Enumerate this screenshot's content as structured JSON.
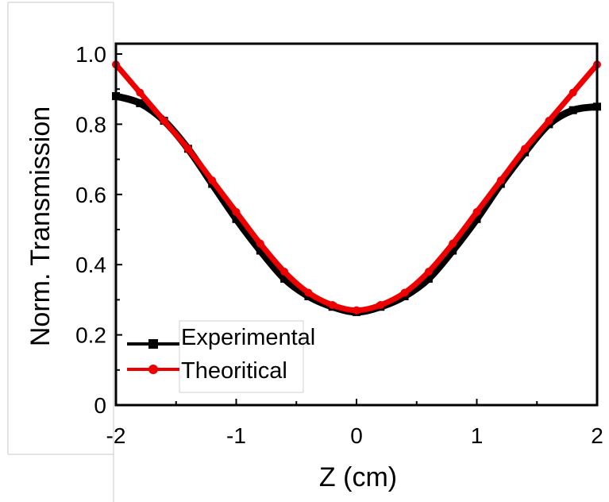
{
  "chart_data": {
    "type": "line",
    "title": "",
    "xlabel": "Z (cm)",
    "ylabel": "Norm. Transmission",
    "xlim": [
      -2,
      2
    ],
    "ylim": [
      0,
      1.0
    ],
    "x_ticks": [
      "-2",
      "-1",
      "0",
      "1",
      "2"
    ],
    "y_ticks": [
      "0",
      "0.2",
      "0.4",
      "0.6",
      "0.8",
      "1.0"
    ],
    "grid": false,
    "legend_position": "bottom-left",
    "series": [
      {
        "name": "Experimental",
        "color": "#000000",
        "marker": "square",
        "x": [
          -2.0,
          -1.8,
          -1.6,
          -1.4,
          -1.2,
          -1.0,
          -0.8,
          -0.6,
          -0.4,
          -0.2,
          0.0,
          0.2,
          0.4,
          0.6,
          0.8,
          1.0,
          1.2,
          1.4,
          1.6,
          1.8,
          2.0
        ],
        "y": [
          0.88,
          0.86,
          0.81,
          0.73,
          0.63,
          0.53,
          0.44,
          0.36,
          0.31,
          0.28,
          0.265,
          0.28,
          0.31,
          0.36,
          0.44,
          0.53,
          0.63,
          0.72,
          0.8,
          0.84,
          0.85
        ]
      },
      {
        "name": "Theoritical",
        "color": "#ee0000",
        "marker": "circle",
        "x": [
          -2.0,
          -1.8,
          -1.6,
          -1.4,
          -1.2,
          -1.0,
          -0.8,
          -0.6,
          -0.4,
          -0.2,
          0.0,
          0.2,
          0.4,
          0.6,
          0.8,
          1.0,
          1.2,
          1.4,
          1.6,
          1.8,
          2.0
        ],
        "y": [
          0.97,
          0.89,
          0.81,
          0.73,
          0.64,
          0.55,
          0.46,
          0.38,
          0.32,
          0.285,
          0.27,
          0.285,
          0.32,
          0.38,
          0.46,
          0.55,
          0.64,
          0.73,
          0.81,
          0.89,
          0.97
        ]
      }
    ]
  }
}
